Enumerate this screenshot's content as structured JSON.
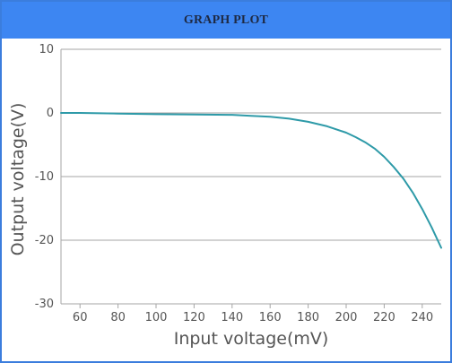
{
  "header": {
    "title": "GRAPH PLOT"
  },
  "colors": {
    "header_bg": "#3d86f2",
    "border": "#3b7ddd",
    "series": "#2e9aa8",
    "grid": "#a6a6a6"
  },
  "chart_data": {
    "type": "line",
    "title": "GRAPH PLOT",
    "xlabel": "Input voltage(mV)",
    "ylabel": "Output voltage(V)",
    "xlim": [
      50,
      250
    ],
    "ylim": [
      -30,
      10
    ],
    "x_ticks": [
      60,
      80,
      100,
      120,
      140,
      160,
      180,
      200,
      220,
      240
    ],
    "y_ticks": [
      10,
      0,
      -10,
      -20,
      -30
    ],
    "grid": "horizontal",
    "legend": "none",
    "series": [
      {
        "x": [
          50,
          60,
          80,
          100,
          120,
          140,
          150,
          160,
          170,
          180,
          190,
          200,
          205,
          210,
          215,
          220,
          225,
          230,
          235,
          240,
          245,
          250
        ],
        "y": [
          0,
          0,
          -0.1,
          -0.2,
          -0.25,
          -0.3,
          -0.45,
          -0.6,
          -0.9,
          -1.4,
          -2.1,
          -3.1,
          -3.8,
          -4.6,
          -5.6,
          -6.9,
          -8.5,
          -10.3,
          -12.5,
          -15.1,
          -18.0,
          -21.2
        ]
      }
    ]
  }
}
